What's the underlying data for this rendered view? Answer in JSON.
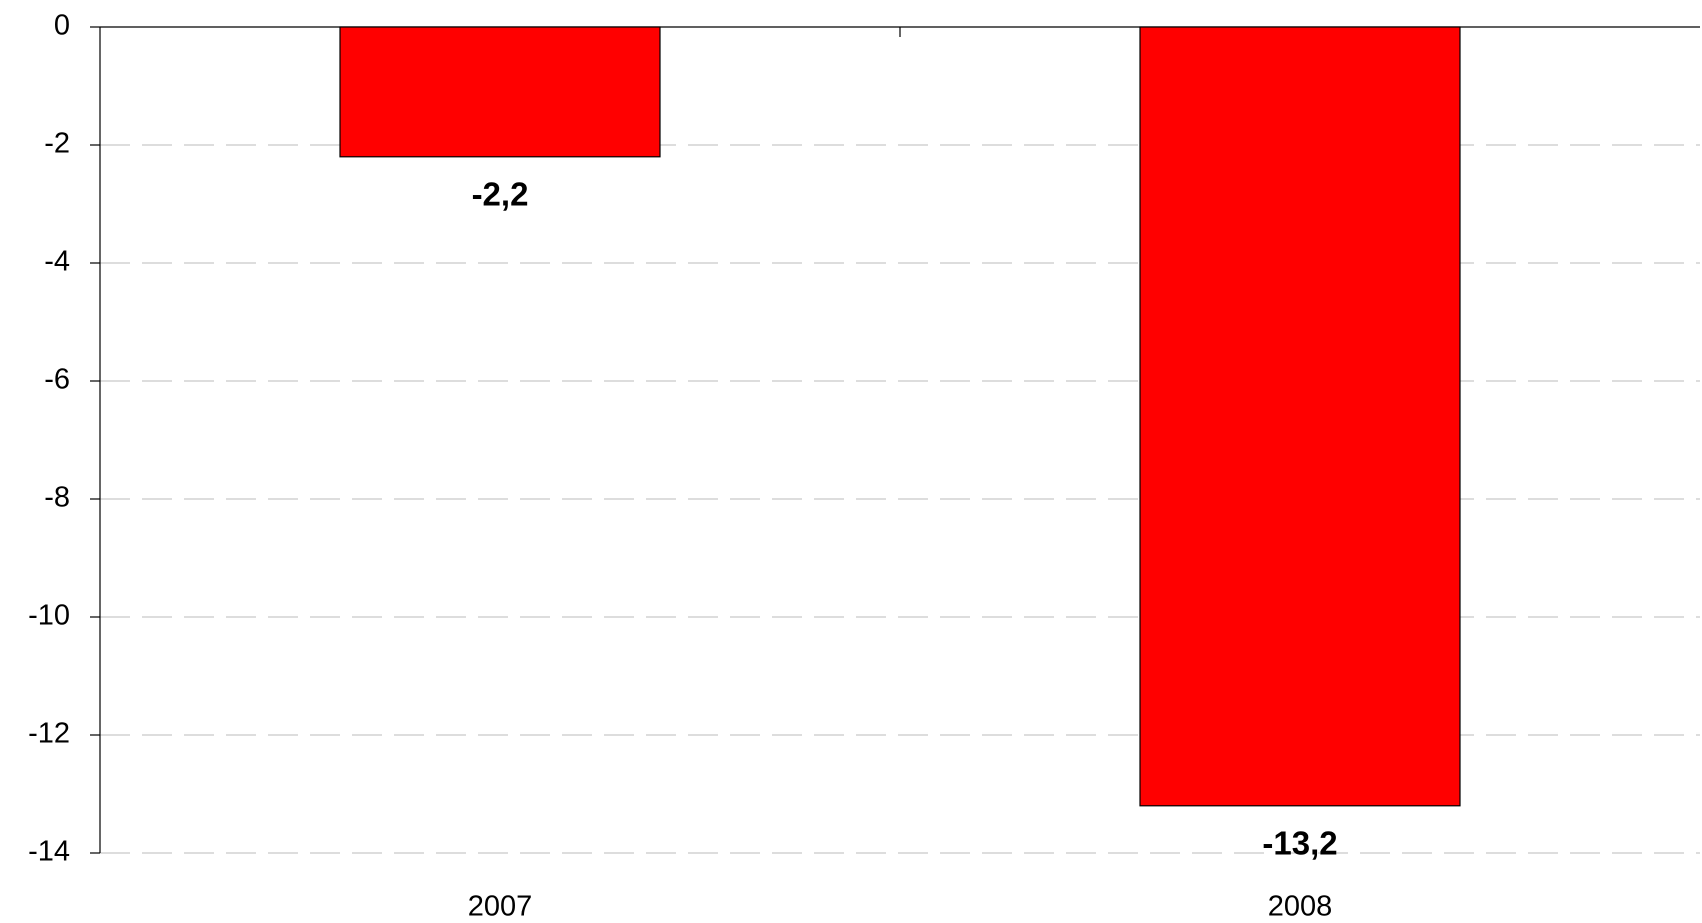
{
  "chart_data": {
    "type": "bar",
    "categories": [
      "2007",
      "2008"
    ],
    "values": [
      -2.2,
      -13.2
    ],
    "value_labels": [
      "-2,2",
      "-13,2"
    ],
    "color": "#ff0000",
    "ylim": [
      -14,
      0
    ],
    "yticks": [
      0,
      -2,
      -4,
      -6,
      -8,
      -10,
      -12,
      -14
    ],
    "grid": true
  }
}
